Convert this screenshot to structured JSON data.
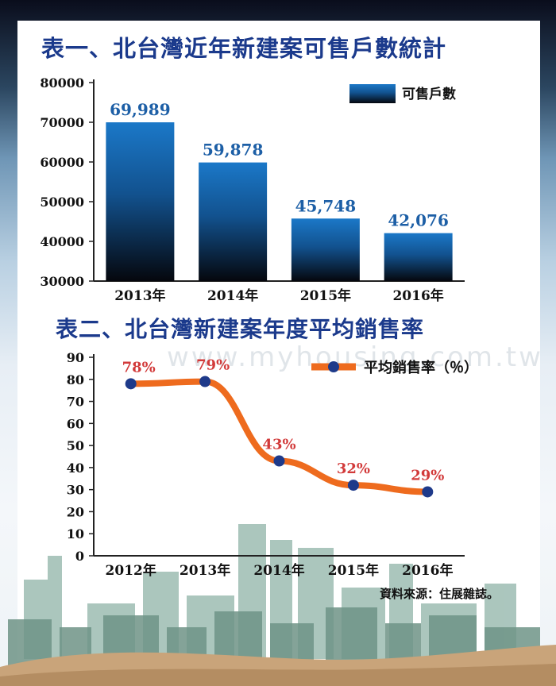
{
  "chart_data": [
    {
      "type": "bar",
      "title": "表一、北台灣近年新建案可售戶數統計",
      "categories": [
        "2013年",
        "2014年",
        "2015年",
        "2016年"
      ],
      "series": [
        {
          "name": "可售戶數",
          "values": [
            69989,
            59878,
            45748,
            42076
          ]
        }
      ],
      "data_labels": [
        "69,989",
        "59,878",
        "45,748",
        "42,076"
      ],
      "y_ticks": [
        "80000",
        "70000",
        "60000",
        "50000",
        "40000",
        "30000"
      ],
      "ylim": [
        30000,
        80000
      ],
      "legend": "top-right",
      "grid": false,
      "colors": {
        "bar_top": "#1b78c8",
        "bar_bottom": "#05070d",
        "label": "#1d5fa6"
      }
    },
    {
      "type": "line",
      "title": "表二、北台灣新建案年度平均銷售率",
      "categories": [
        "2012年",
        "2013年",
        "2014年",
        "2015年",
        "2016年"
      ],
      "series": [
        {
          "name": "平均銷售率（％）",
          "values": [
            78,
            79,
            43,
            32,
            29
          ]
        }
      ],
      "data_labels": [
        "78%",
        "79%",
        "43%",
        "32%",
        "29%"
      ],
      "y_ticks": [
        "90",
        "80",
        "70",
        "60",
        "50",
        "40",
        "30",
        "20",
        "10",
        "0"
      ],
      "ylim": [
        0,
        90
      ],
      "legend": "top-right",
      "grid": false,
      "colors": {
        "line": "#ee6b1e",
        "marker": "#1e3a8a",
        "label": "#d23a3a"
      }
    }
  ],
  "watermark": "www.myhousing.com.tw",
  "source": "資料來源：住展雜誌。"
}
